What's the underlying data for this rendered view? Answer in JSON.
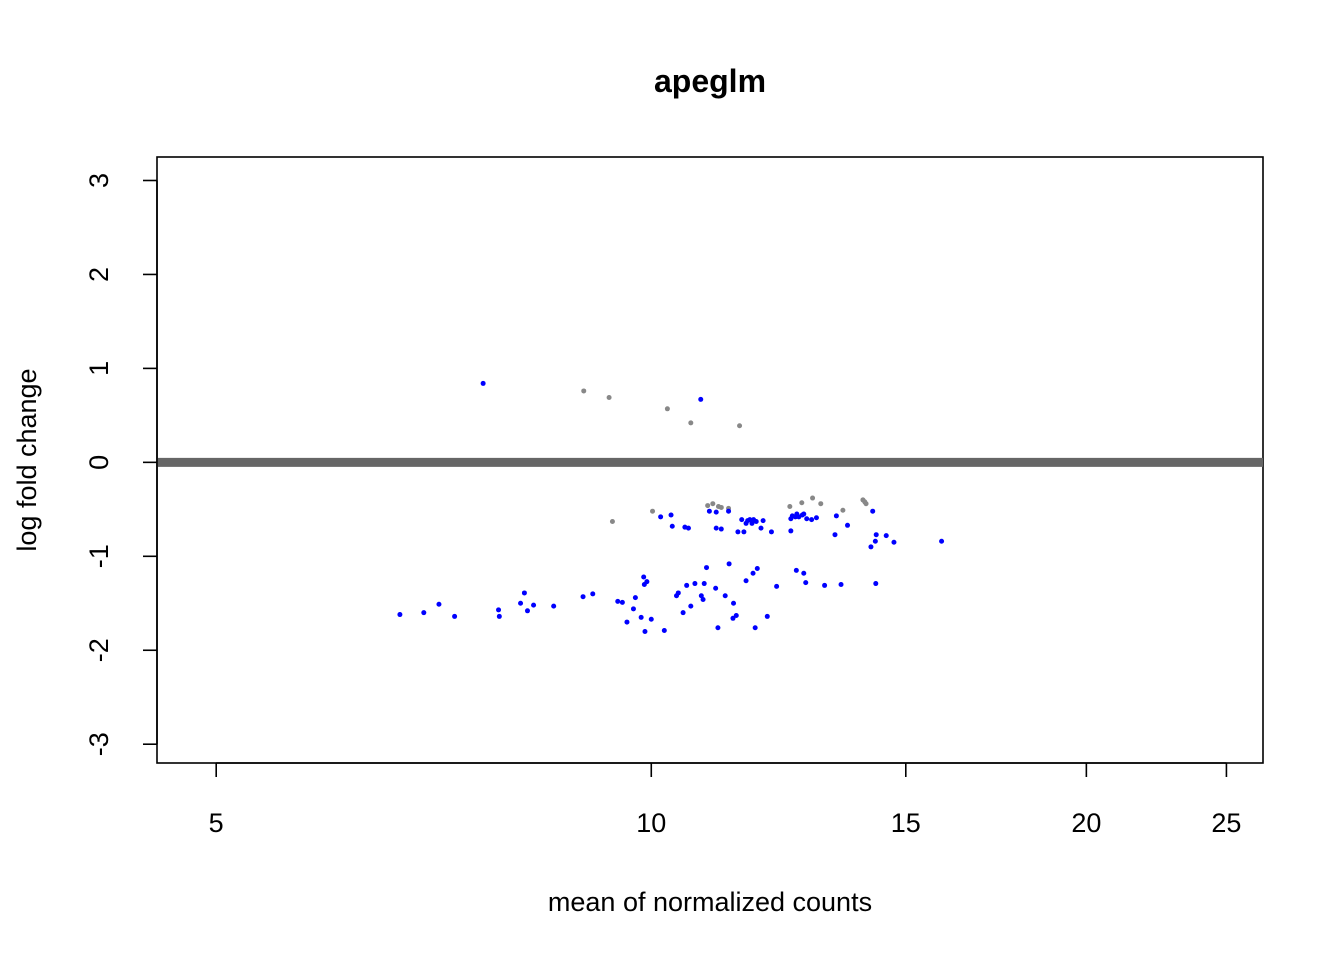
{
  "chart_data": {
    "type": "scatter",
    "title": "apeglm",
    "xlabel": "mean of normalized counts",
    "ylabel": "log fold change",
    "x_scale": "log",
    "xlim": [
      4.55,
      26.5
    ],
    "ylim": [
      -3.2,
      3.25
    ],
    "x_ticks": [
      5,
      10,
      15,
      20,
      25
    ],
    "y_ticks": [
      -3,
      -2,
      -1,
      0,
      1,
      2,
      3
    ],
    "grid": false,
    "reference_line": {
      "y": 0,
      "color": "#666666"
    },
    "colors": {
      "significant": "#0000ff",
      "not_significant": "#888888"
    },
    "series": [
      {
        "significant": true,
        "points": [
          [
            7.65,
            0.84
          ],
          [
            10.82,
            0.67
          ],
          [
            10.15,
            -0.58
          ],
          [
            10.32,
            -0.56
          ],
          [
            10.34,
            -0.68
          ],
          [
            10.55,
            -0.69
          ],
          [
            10.61,
            -0.7
          ],
          [
            10.97,
            -0.52
          ],
          [
            11.09,
            -0.53
          ],
          [
            11.09,
            -0.7
          ],
          [
            11.18,
            -0.71
          ],
          [
            11.31,
            -0.52
          ],
          [
            11.48,
            -0.74
          ],
          [
            11.55,
            -0.61
          ],
          [
            11.59,
            -0.74
          ],
          [
            11.63,
            -0.65
          ],
          [
            11.66,
            -0.62
          ],
          [
            11.7,
            -0.61
          ],
          [
            11.74,
            -0.65
          ],
          [
            11.77,
            -0.61
          ],
          [
            11.82,
            -0.63
          ],
          [
            11.91,
            -0.7
          ],
          [
            11.95,
            -0.62
          ],
          [
            12.11,
            -0.74
          ],
          [
            12.49,
            -0.6
          ],
          [
            12.52,
            -0.57
          ],
          [
            12.58,
            -0.58
          ],
          [
            12.61,
            -0.55
          ],
          [
            12.65,
            -0.58
          ],
          [
            12.72,
            -0.56
          ],
          [
            12.75,
            -0.55
          ],
          [
            12.81,
            -0.6
          ],
          [
            12.91,
            -0.61
          ],
          [
            13.01,
            -0.59
          ],
          [
            13.4,
            -0.77
          ],
          [
            13.43,
            -0.57
          ],
          [
            13.67,
            -0.67
          ],
          [
            13.53,
            -1.3
          ],
          [
            12.6,
            -1.15
          ],
          [
            12.75,
            -1.18
          ],
          [
            12.79,
            -1.28
          ],
          [
            13.18,
            -1.31
          ],
          [
            12.49,
            -0.73
          ],
          [
            14.23,
            -0.52
          ],
          [
            14.19,
            -0.9
          ],
          [
            14.31,
            -0.77
          ],
          [
            14.29,
            -0.84
          ],
          [
            14.54,
            -0.78
          ],
          [
            14.72,
            -0.85
          ],
          [
            15.88,
            -0.84
          ],
          [
            14.3,
            -1.29
          ],
          [
            6.7,
            -1.62
          ],
          [
            6.96,
            -1.6
          ],
          [
            7.13,
            -1.51
          ],
          [
            7.31,
            -1.64
          ],
          [
            7.84,
            -1.57
          ],
          [
            7.85,
            -1.64
          ],
          [
            8.12,
            -1.5
          ],
          [
            8.17,
            -1.39
          ],
          [
            8.21,
            -1.58
          ],
          [
            8.29,
            -1.52
          ],
          [
            8.56,
            -1.53
          ],
          [
            8.97,
            -1.43
          ],
          [
            9.11,
            -1.4
          ],
          [
            9.48,
            -1.48
          ],
          [
            9.55,
            -1.49
          ],
          [
            9.62,
            -1.7
          ],
          [
            9.72,
            -1.56
          ],
          [
            9.75,
            -1.44
          ],
          [
            9.84,
            -1.65
          ],
          [
            9.88,
            -1.22
          ],
          [
            9.89,
            -1.3
          ],
          [
            9.9,
            -1.8
          ],
          [
            9.93,
            -1.27
          ],
          [
            10.0,
            -1.67
          ],
          [
            10.21,
            -1.79
          ],
          [
            10.41,
            -1.42
          ],
          [
            10.44,
            -1.39
          ],
          [
            10.52,
            -1.6
          ],
          [
            10.58,
            -1.31
          ],
          [
            10.65,
            -1.53
          ],
          [
            10.72,
            -1.29
          ],
          [
            10.83,
            -1.42
          ],
          [
            10.86,
            -1.46
          ],
          [
            10.88,
            -1.29
          ],
          [
            10.92,
            -1.12
          ],
          [
            11.08,
            -1.34
          ],
          [
            11.12,
            -1.76
          ],
          [
            11.25,
            -1.42
          ],
          [
            11.32,
            -1.08
          ],
          [
            11.39,
            -1.66
          ],
          [
            11.4,
            -1.5
          ],
          [
            11.45,
            -1.63
          ],
          [
            11.63,
            -1.26
          ],
          [
            11.76,
            -1.18
          ],
          [
            11.8,
            -1.76
          ],
          [
            11.84,
            -1.13
          ],
          [
            12.03,
            -1.64
          ],
          [
            12.21,
            -1.32
          ]
        ]
      },
      {
        "significant": false,
        "points": [
          [
            8.98,
            0.76
          ],
          [
            9.35,
            0.69
          ],
          [
            10.26,
            0.57
          ],
          [
            10.65,
            0.42
          ],
          [
            11.51,
            0.39
          ],
          [
            9.4,
            -0.63
          ],
          [
            10.02,
            -0.52
          ],
          [
            10.94,
            -0.46
          ],
          [
            11.03,
            -0.44
          ],
          [
            11.13,
            -0.47
          ],
          [
            11.18,
            -0.48
          ],
          [
            11.31,
            -0.49
          ],
          [
            12.47,
            -0.47
          ],
          [
            12.71,
            -0.43
          ],
          [
            12.93,
            -0.38
          ],
          [
            13.1,
            -0.44
          ],
          [
            13.57,
            -0.51
          ],
          [
            14.01,
            -0.4
          ],
          [
            14.05,
            -0.42
          ],
          [
            14.08,
            -0.44
          ]
        ]
      }
    ]
  }
}
